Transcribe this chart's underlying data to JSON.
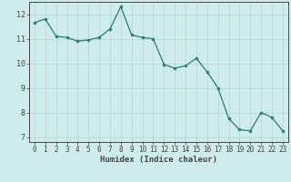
{
  "x": [
    0,
    1,
    2,
    3,
    4,
    5,
    6,
    7,
    8,
    9,
    10,
    11,
    12,
    13,
    14,
    15,
    16,
    17,
    18,
    19,
    20,
    21,
    22,
    23
  ],
  "y": [
    11.65,
    11.8,
    11.1,
    11.05,
    10.9,
    10.95,
    11.05,
    11.4,
    12.3,
    11.15,
    11.05,
    11.0,
    9.95,
    9.8,
    9.9,
    10.2,
    9.65,
    9.0,
    7.75,
    7.3,
    7.25,
    8.0,
    7.8,
    7.25
  ],
  "xlabel": "Humidex (Indice chaleur)",
  "xlim": [
    -0.5,
    23.5
  ],
  "ylim": [
    6.8,
    12.5
  ],
  "yticks": [
    7,
    8,
    9,
    10,
    11,
    12
  ],
  "xticks": [
    0,
    1,
    2,
    3,
    4,
    5,
    6,
    7,
    8,
    9,
    10,
    11,
    12,
    13,
    14,
    15,
    16,
    17,
    18,
    19,
    20,
    21,
    22,
    23
  ],
  "line_color": "#2a7d6e",
  "bg_color": "#cdecea",
  "grid_color": "#b8d4d0",
  "axis_color": "#444444",
  "tick_fontsize": 5.5,
  "xlabel_fontsize": 6.5
}
